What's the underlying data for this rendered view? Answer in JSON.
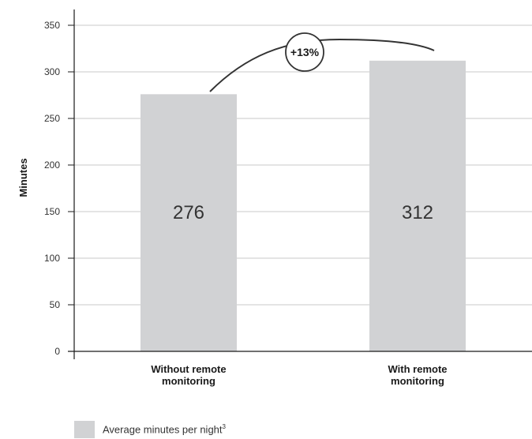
{
  "chart_data": {
    "type": "bar",
    "categories": [
      [
        "Without remote",
        "monitoring"
      ],
      [
        "With remote",
        "monitoring"
      ]
    ],
    "values": [
      276,
      312
    ],
    "value_labels": [
      "276",
      "312"
    ],
    "ylabel": "Minutes",
    "ylim": [
      0,
      350
    ],
    "yticks": [
      0,
      50,
      100,
      150,
      200,
      250,
      300,
      350
    ],
    "grid": true,
    "bar_color": "#d1d2d4",
    "annotation": {
      "text": "+13%"
    },
    "legend": {
      "label": "Average minutes per night",
      "superscript": "3",
      "placement": "bottom-left"
    }
  }
}
